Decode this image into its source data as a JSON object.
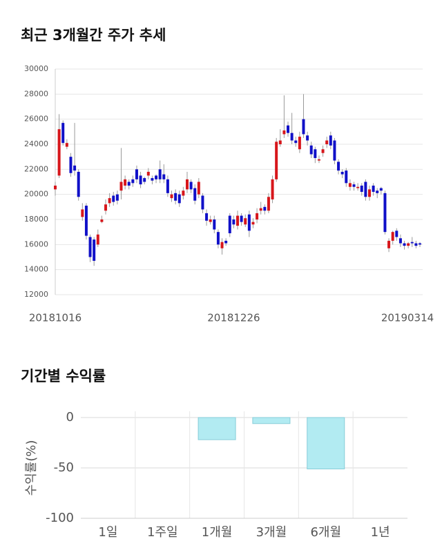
{
  "charts": [
    {
      "type": "candlestick",
      "title": "최근 3개월간 주가 추세",
      "categories": [
        "20181016",
        null,
        null,
        null,
        null,
        null,
        null,
        null,
        null,
        null,
        null,
        null,
        null,
        null,
        null,
        null,
        null,
        null,
        null,
        null,
        null,
        null,
        null,
        null,
        null,
        null,
        null,
        null,
        null,
        null,
        null,
        null,
        null,
        null,
        null,
        null,
        null,
        null,
        null,
        null,
        null,
        null,
        null,
        null,
        null,
        null,
        "20181226",
        null,
        null,
        null,
        null,
        null,
        null,
        null,
        null,
        null,
        null,
        null,
        null,
        null,
        null,
        null,
        null,
        null,
        null,
        null,
        null,
        null,
        null,
        null,
        null,
        null,
        null,
        null,
        null,
        null,
        null,
        null,
        null,
        null,
        null,
        null,
        null,
        null,
        null,
        null,
        null,
        null,
        null,
        null,
        null,
        "20190314",
        null,
        null,
        null
      ],
      "open": [
        20400,
        21500,
        25700,
        23800,
        23000,
        22300,
        21800,
        18200,
        19100,
        16600,
        16400,
        16000,
        17800,
        18700,
        19300,
        19900,
        20000,
        20300,
        20700,
        21000,
        21200,
        22000,
        21500,
        21300,
        21500,
        21300,
        21500,
        22000,
        21600,
        21200,
        19700,
        20100,
        20000,
        19900,
        20400,
        21000,
        20500,
        20000,
        19900,
        18500,
        17800,
        18000,
        17000,
        15700,
        16300,
        18300,
        18000,
        17500,
        18300,
        17600,
        18400,
        17600,
        18000,
        18700,
        19000,
        18700,
        19600,
        21200,
        24000,
        24800,
        25500,
        24900,
        24300,
        23600,
        26000,
        24700,
        23900,
        23600,
        22700,
        23300,
        24000,
        24700,
        24300,
        22600,
        21800,
        21900,
        20600,
        20800,
        20500,
        20700,
        21000,
        19800,
        20700,
        20300,
        20500,
        20100,
        15700,
        16300,
        17100,
        16500,
        16100,
        15900,
        16200,
        16100,
        16100
      ],
      "high": [
        21000,
        26400,
        25900,
        24400,
        23300,
        25700,
        22000,
        19300,
        19300,
        16800,
        16600,
        17200,
        18300,
        19600,
        20100,
        20200,
        20300,
        23700,
        21500,
        21200,
        21500,
        22300,
        21800,
        21400,
        22100,
        21500,
        21600,
        22700,
        22400,
        21500,
        20300,
        20400,
        20300,
        20600,
        21800,
        21200,
        20800,
        21300,
        20100,
        18800,
        18300,
        18300,
        17200,
        16500,
        16500,
        18500,
        18300,
        18700,
        18500,
        18400,
        18700,
        18100,
        18900,
        19400,
        19200,
        20100,
        21500,
        24500,
        25200,
        27900,
        25800,
        26500,
        24600,
        25000,
        28000,
        25000,
        24200,
        23800,
        23100,
        23900,
        24600,
        25000,
        24500,
        22800,
        22000,
        22100,
        21200,
        21000,
        20900,
        20900,
        21200,
        20700,
        20900,
        20500,
        20600,
        20300,
        16500,
        17100,
        17300,
        16800,
        16300,
        16200,
        16600,
        16300,
        16200
      ],
      "low": [
        19900,
        21300,
        23900,
        23600,
        21400,
        21500,
        19500,
        17900,
        16400,
        14600,
        14300,
        15800,
        17700,
        18400,
        19000,
        19100,
        19200,
        19600,
        20400,
        20400,
        20600,
        20900,
        20500,
        20800,
        21200,
        20800,
        20900,
        20900,
        20900,
        19800,
        19400,
        19200,
        19000,
        19600,
        20100,
        20100,
        19200,
        19700,
        18500,
        17500,
        17600,
        16900,
        15700,
        15200,
        15900,
        16600,
        17300,
        17200,
        17500,
        17400,
        16600,
        17300,
        17700,
        18400,
        18400,
        18500,
        19300,
        21000,
        23800,
        24500,
        24600,
        24000,
        23800,
        23300,
        24500,
        23900,
        22900,
        22500,
        22500,
        23000,
        23700,
        23600,
        22400,
        21600,
        21300,
        20600,
        20300,
        20300,
        20300,
        19900,
        19500,
        19500,
        19900,
        19700,
        20000,
        16800,
        15400,
        16000,
        16300,
        15800,
        15600,
        15700,
        15800,
        15700,
        15800
      ],
      "close": [
        20700,
        25200,
        24100,
        24100,
        21700,
        21900,
        19800,
        18800,
        16700,
        15000,
        14700,
        16800,
        18000,
        19200,
        19700,
        19400,
        19500,
        21000,
        21200,
        20700,
        20900,
        21200,
        20800,
        21000,
        21800,
        21100,
        21200,
        21200,
        21200,
        20100,
        20000,
        19500,
        19300,
        20300,
        21200,
        20400,
        19500,
        21000,
        18800,
        17900,
        18000,
        17200,
        16000,
        16200,
        16100,
        16900,
        17600,
        18300,
        17800,
        18100,
        17100,
        17800,
        18500,
        18900,
        18700,
        19800,
        21200,
        24200,
        24300,
        25100,
        24900,
        24300,
        24100,
        24600,
        24800,
        24300,
        23200,
        22900,
        22800,
        23600,
        24300,
        23900,
        22700,
        21900,
        21600,
        20900,
        20900,
        20600,
        20600,
        20200,
        19800,
        20400,
        20200,
        20100,
        20300,
        17000,
        16300,
        17000,
        16600,
        16100,
        15900,
        16100,
        16100,
        15900,
        16000
      ],
      "up_color": "#d7161b",
      "down_color": "#1010c8",
      "ylim": [
        12000,
        30000
      ],
      "yticks": [
        12000,
        14000,
        16000,
        18000,
        20000,
        22000,
        24000,
        26000,
        28000,
        30000
      ],
      "grid": true
    },
    {
      "type": "bar",
      "title": "기간별 수익률",
      "ylabel": "수익률(%)",
      "categories": [
        "1일",
        "1주일",
        "1개월",
        "3개월",
        "6개월",
        "1년"
      ],
      "values": [
        null,
        null,
        -22,
        -6,
        -51,
        null
      ],
      "color": "#b2ebf2",
      "edge_color": "#86ccd8",
      "ylim": [
        -100,
        0
      ],
      "yticks": [
        -100,
        -50,
        0
      ],
      "grid": true
    }
  ]
}
